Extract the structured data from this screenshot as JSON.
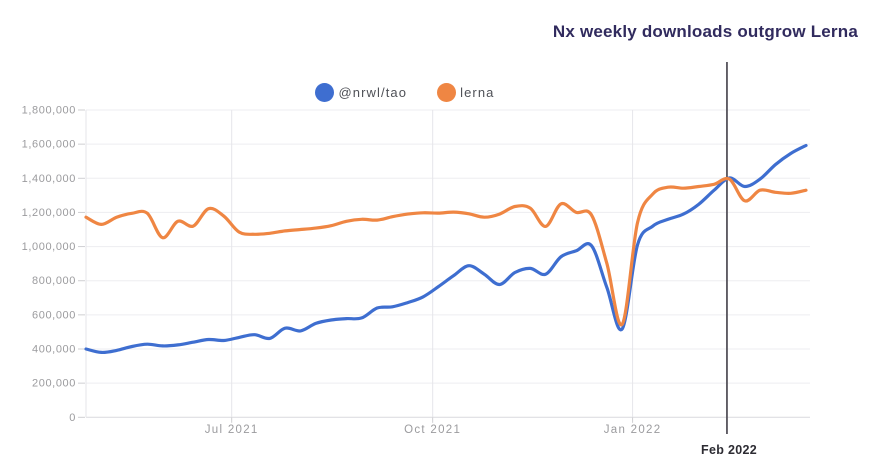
{
  "chart_data": {
    "type": "line",
    "title": "Nx weekly downloads outgrow Lerna",
    "title_color": "#312b5e",
    "legend_position": "top-center",
    "grid": true,
    "x_unit": "week",
    "ylim": [
      0,
      1800000
    ],
    "y_ticks": [
      0,
      200000,
      400000,
      600000,
      800000,
      1000000,
      1200000,
      1400000,
      1600000,
      1800000
    ],
    "x_ticks": [
      {
        "label": "Jul 2021",
        "index": 9.51
      },
      {
        "label": "Oct 2021",
        "index": 22.63
      },
      {
        "label": "Jan 2022",
        "index": 35.68
      }
    ],
    "series": [
      {
        "name": "@nrwl/tao",
        "color": "#3e6ed0",
        "values": [
          400000,
          380000,
          392000,
          415000,
          428000,
          418000,
          424000,
          440000,
          456000,
          450000,
          468000,
          484000,
          462000,
          522000,
          506000,
          550000,
          570000,
          578000,
          582000,
          640000,
          647000,
          672000,
          705000,
          765000,
          830000,
          888000,
          838000,
          778000,
          848000,
          872000,
          838000,
          940000,
          975000,
          1005000,
          760000,
          518000,
          1010000,
          1120000,
          1160000,
          1190000,
          1248000,
          1330000,
          1402000,
          1352000,
          1395000,
          1480000,
          1545000,
          1592000
        ]
      },
      {
        "name": "lerna",
        "color": "#ef8643",
        "values": [
          1172000,
          1130000,
          1172000,
          1195000,
          1195000,
          1052000,
          1148000,
          1120000,
          1222000,
          1178000,
          1085000,
          1072000,
          1078000,
          1092000,
          1100000,
          1108000,
          1122000,
          1148000,
          1160000,
          1155000,
          1175000,
          1190000,
          1198000,
          1196000,
          1202000,
          1192000,
          1172000,
          1190000,
          1235000,
          1225000,
          1118000,
          1250000,
          1200000,
          1185000,
          900000,
          545000,
          1140000,
          1308000,
          1348000,
          1342000,
          1352000,
          1365000,
          1395000,
          1268000,
          1330000,
          1318000,
          1312000,
          1330000
        ]
      }
    ],
    "annotation": {
      "label": "Feb 2022",
      "index": 41.84,
      "line_color": "#56535b",
      "label_color": "#2d2c33"
    },
    "axis_colors": {
      "tick_text": "#9b9b9e",
      "h_gridline": "#ededf0",
      "v_gridline": "#e6e6ea",
      "axis_line": "#d9d9dd",
      "tick_mark": "#cfcfd2"
    }
  }
}
